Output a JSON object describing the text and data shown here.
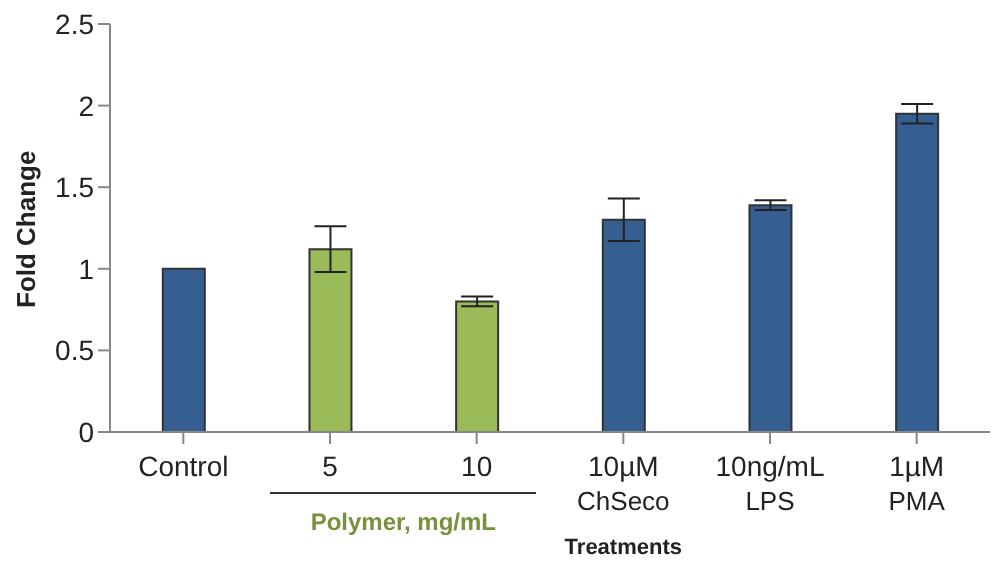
{
  "chart_data": {
    "type": "bar",
    "ylabel": "Fold Change",
    "xlabel": "Treatments",
    "categories": [
      "Control",
      "5",
      "10",
      "10µM\nChSeco",
      "10ng/mL\nLPS",
      "1µM\nPMA"
    ],
    "values": [
      1.0,
      1.12,
      0.8,
      1.3,
      1.39,
      1.95
    ],
    "errors": [
      null,
      0.14,
      0.03,
      0.13,
      0.03,
      0.06
    ],
    "colors": [
      "#365f91",
      "#9bbb59",
      "#9bbb59",
      "#365f91",
      "#365f91",
      "#365f91"
    ],
    "ylim": [
      0,
      2.5
    ],
    "yticks": [
      0,
      0.5,
      1,
      1.5,
      2,
      2.5
    ],
    "grid": false,
    "annotations": [
      "Polymer, mg/mL"
    ]
  }
}
